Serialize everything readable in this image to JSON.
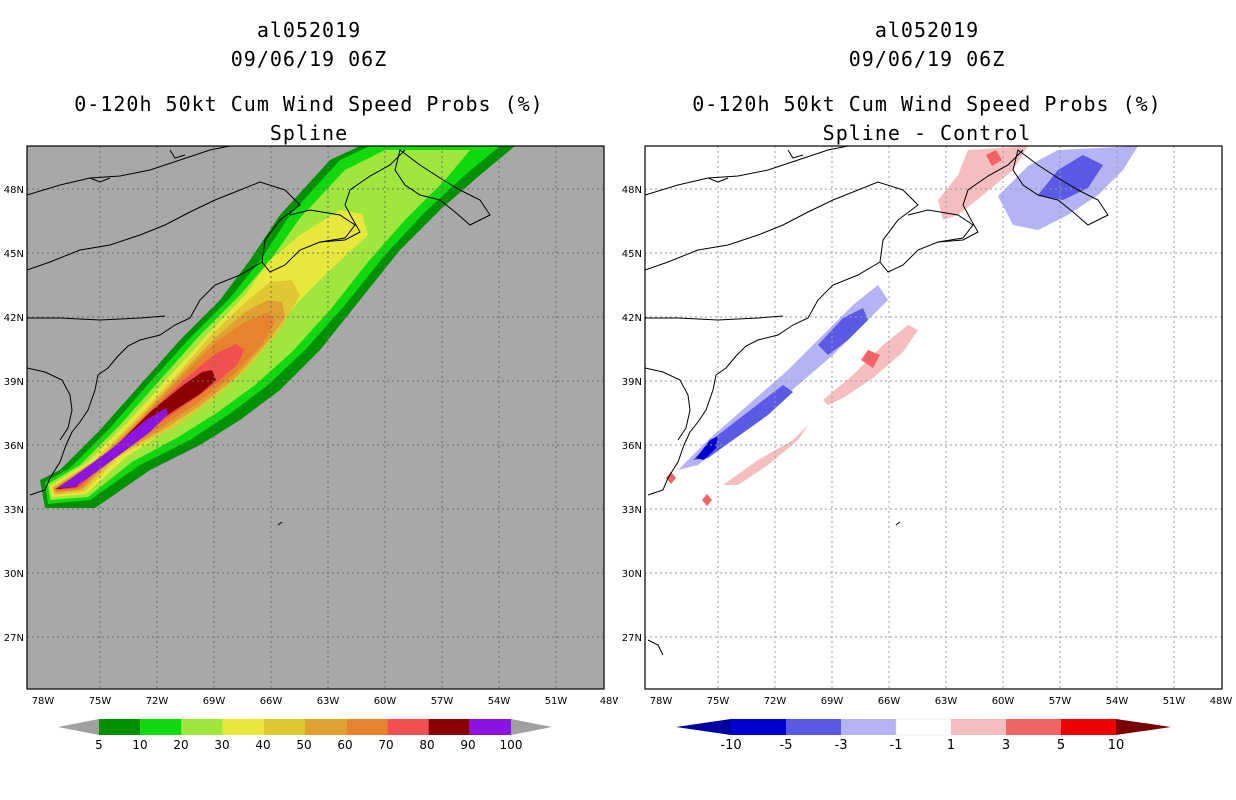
{
  "panels": [
    {
      "storm_id": "al052019",
      "datetime": "09/06/19 06Z",
      "product": "0-120h 50kt Cum Wind Speed Probs (%)",
      "subtitle": "Spline",
      "colorbar": {
        "labels": [
          "5",
          "10",
          "20",
          "30",
          "40",
          "50",
          "60",
          "70",
          "80",
          "90",
          "100"
        ],
        "colors": [
          "#009100",
          "#10d910",
          "#a0e63c",
          "#e8e83c",
          "#e0c832",
          "#e0a032",
          "#e8822d",
          "#f05050",
          "#8c0000",
          "#8c14e0"
        ]
      }
    },
    {
      "storm_id": "al052019",
      "datetime": "09/06/19 06Z",
      "product": "0-120h 50kt Cum Wind Speed Probs (%)",
      "subtitle": "Spline - Control",
      "colorbar": {
        "labels": [
          "-10",
          "-5",
          "-3",
          "-1",
          "1",
          "3",
          "5",
          "10"
        ],
        "colors": [
          "#0000d0",
          "#5a5ae6",
          "#b4b4f5",
          "#ffffff",
          "#f5bebe",
          "#f06464",
          "#f00000"
        ]
      }
    }
  ],
  "axes": {
    "lat_labels": [
      "48N",
      "45N",
      "42N",
      "39N",
      "36N",
      "33N",
      "30N",
      "27N"
    ],
    "lon_labels": [
      "78W",
      "75W",
      "72W",
      "69W",
      "66W",
      "63W",
      "60W",
      "57W",
      "54W",
      "51W",
      "48W"
    ]
  },
  "colors": {
    "map_bg_left": "#a8a8a8",
    "map_bg_right": "#ffffff",
    "coast": "#000000",
    "grid": "#8c8c8c"
  }
}
